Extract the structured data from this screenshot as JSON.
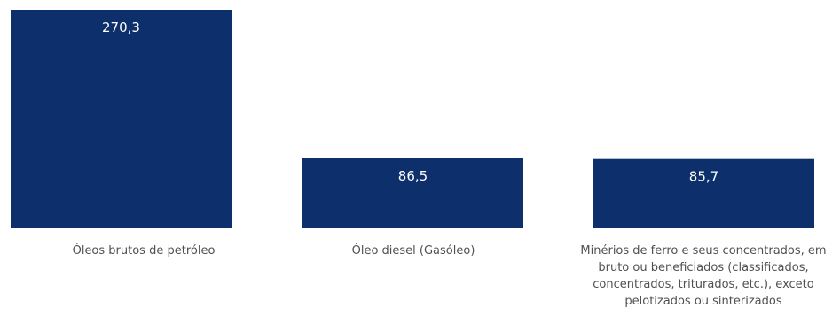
{
  "chart_data": {
    "type": "bar",
    "categories": [
      "Óleos brutos de petróleo",
      "Óleo diesel (Gasóleo)",
      "Minérios de ferro e seus concentrados, em bruto ou beneficiados (classificados, concentrados, triturados, etc.), exceto pelotizados ou sinterizados"
    ],
    "values": [
      270.3,
      86.5,
      85.7
    ],
    "data_labels": [
      "270,3",
      "86,5",
      "85,7"
    ],
    "ylim": [
      0,
      270.3
    ],
    "grid": false,
    "legend": "none",
    "colors": {
      "bar": "#0d2f6b",
      "label_inside": "#ffffff",
      "label_outside": "#555555",
      "category_text": "#505050"
    }
  }
}
